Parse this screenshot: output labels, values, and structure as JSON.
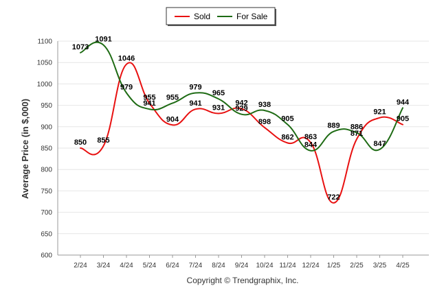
{
  "chart_data": {
    "type": "line",
    "categories": [
      "2/24",
      "3/24",
      "4/24",
      "5/24",
      "6/24",
      "7/24",
      "8/24",
      "9/24",
      "10/24",
      "11/24",
      "12/24",
      "1/25",
      "2/25",
      "3/25",
      "4/25"
    ],
    "series": [
      {
        "name": "Sold",
        "color": "#e81010",
        "values": [
          850,
          855,
          1046,
          955,
          904,
          941,
          931,
          942,
          898,
          862,
          863,
          722,
          871,
          921,
          905
        ]
      },
      {
        "name": "For Sale",
        "color": "#1e6b14",
        "values": [
          1073,
          1091,
          979,
          941,
          955,
          979,
          965,
          929,
          938,
          905,
          844,
          889,
          886,
          847,
          944
        ]
      }
    ],
    "xlabel": "",
    "ylabel": "Average Price (in $,000)",
    "ylim": [
      600,
      1100
    ],
    "yticks": [
      600,
      650,
      700,
      750,
      800,
      850,
      900,
      950,
      1000,
      1050,
      1100
    ],
    "grid": true,
    "legend": "top-center",
    "footer": "Copyright © Trendgraphix, Inc.",
    "colors": {
      "grid": "#e6e6e6",
      "axis": "#999999",
      "legend_border": "#333333"
    }
  }
}
